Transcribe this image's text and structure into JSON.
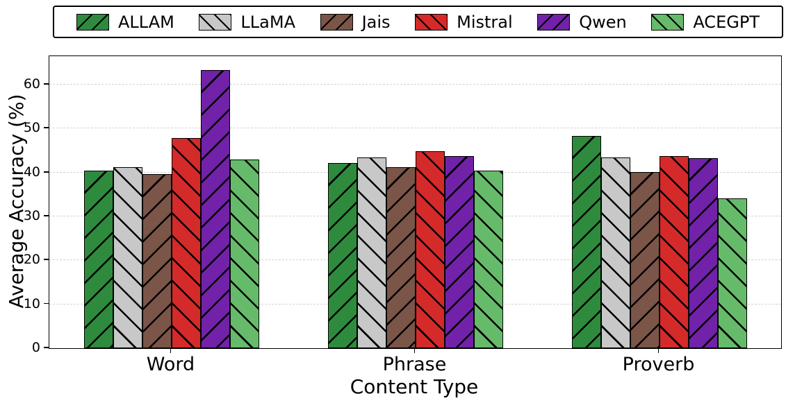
{
  "chart_data": {
    "type": "bar",
    "title": "",
    "xlabel": "Content Type",
    "ylabel": "Average Accuracy (%)",
    "categories": [
      "Word",
      "Phrase",
      "Proverb"
    ],
    "series": [
      {
        "name": "ALLAM",
        "color": "#2e8b3d",
        "hatch": "/",
        "values": [
          40.5,
          42.2,
          48.4
        ]
      },
      {
        "name": "LLaMA",
        "color": "#c8c8c8",
        "hatch": "\\",
        "values": [
          41.3,
          43.5,
          43.5
        ]
      },
      {
        "name": "Jais",
        "color": "#7a5548",
        "hatch": "/",
        "values": [
          39.7,
          41.3,
          40.1
        ]
      },
      {
        "name": "Mistral",
        "color": "#d42a2a",
        "hatch": "\\",
        "values": [
          47.9,
          44.9,
          43.8
        ]
      },
      {
        "name": "Qwen",
        "color": "#7122a8",
        "hatch": "/",
        "values": [
          63.3,
          43.8,
          43.3
        ]
      },
      {
        "name": "ACEGPT",
        "color": "#66bb6a",
        "hatch": "\\",
        "values": [
          43.0,
          40.4,
          34.2
        ]
      }
    ],
    "ylim": [
      0,
      66.5
    ],
    "yticks": [
      0,
      10,
      20,
      30,
      40,
      50,
      60
    ],
    "grid": "horizontal-dashed",
    "legend_position": "top",
    "bar_edge_color": "#000000",
    "hatch_color": "#000000"
  }
}
